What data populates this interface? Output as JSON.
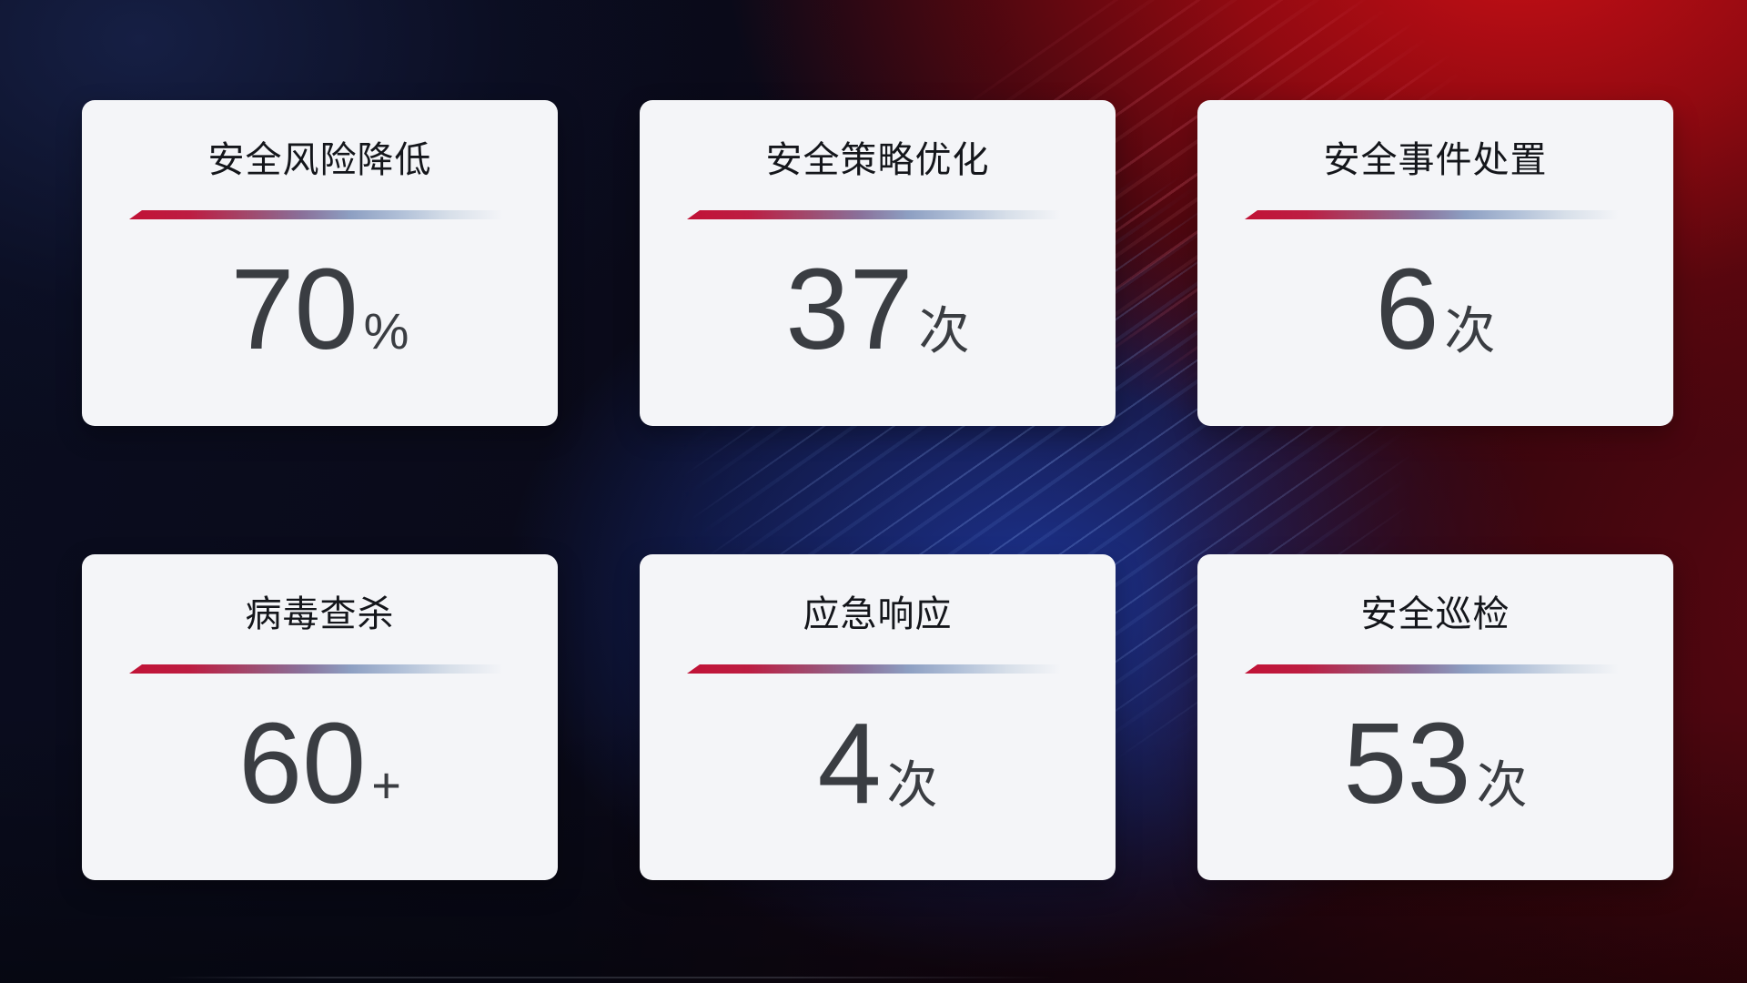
{
  "theme": {
    "card_bg": "#f4f5f8",
    "title_color": "#14161b",
    "number_color": "#3a3d42",
    "divider_red": "#c11236",
    "divider_blue": "#8d9fc2",
    "bg_red_glow": "#c60f16",
    "bg_blue_glow": "#1c3494",
    "bg_navy": "#0a0d1f"
  },
  "cards": [
    {
      "title": "安全风险降低",
      "value": "70",
      "unit": "%"
    },
    {
      "title": "安全策略优化",
      "value": "37",
      "unit": "次"
    },
    {
      "title": "安全事件处置",
      "value": "6",
      "unit": "次"
    },
    {
      "title": "病毒查杀",
      "value": "60",
      "unit": "+"
    },
    {
      "title": "应急响应",
      "value": "4",
      "unit": "次"
    },
    {
      "title": "安全巡检",
      "value": "53",
      "unit": "次"
    }
  ]
}
